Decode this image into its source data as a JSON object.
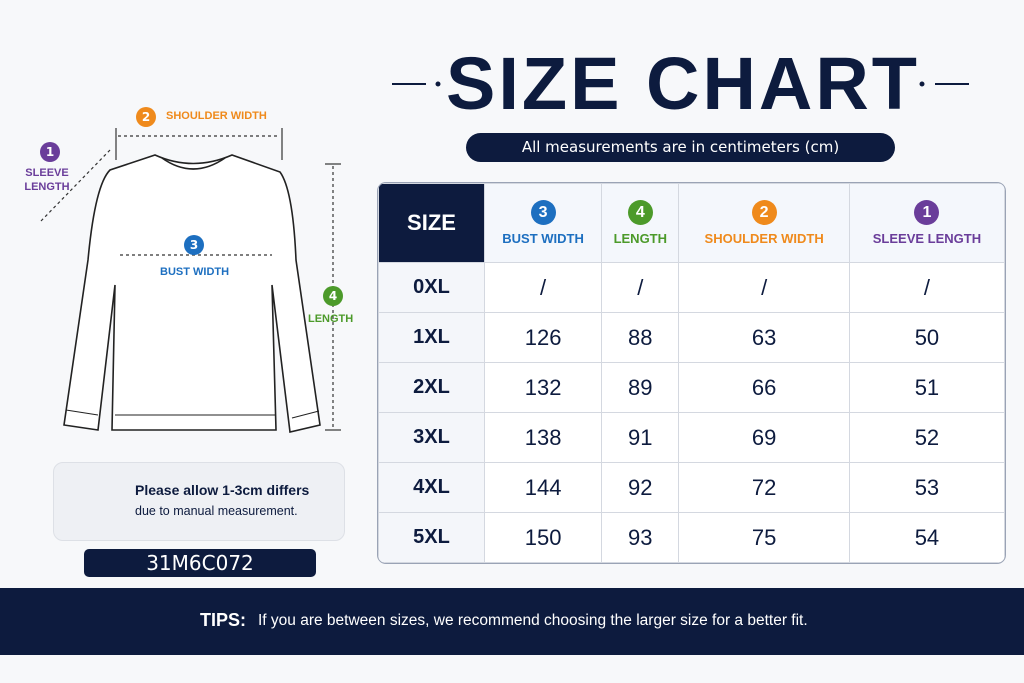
{
  "title": "SIZE CHART",
  "subtitle": "All measurements are in centimeters (cm)",
  "diagram": {
    "labels": [
      {
        "num": 1,
        "text": "SLEEVE LENGTH"
      },
      {
        "num": 2,
        "text": "SHOULDER WIDTH"
      },
      {
        "num": 3,
        "text": "BUST WIDTH"
      },
      {
        "num": 4,
        "text": "LENGTH"
      }
    ]
  },
  "note": {
    "title": "Please allow 1-3cm differs",
    "text": "due to manual measurement."
  },
  "code": "31M6C072",
  "table": {
    "header": [
      "SIZE",
      {
        "num": 3,
        "label": "BUST WIDTH"
      },
      {
        "num": 4,
        "label": "LENGTH"
      },
      {
        "num": 2,
        "label": "SHOULDER WIDTH"
      },
      {
        "num": 1,
        "label": "SLEEVE LENGTH"
      }
    ],
    "rows": [
      [
        "0XL",
        "/",
        "/",
        "/",
        "/"
      ],
      [
        "1XL",
        126,
        88,
        63,
        50
      ],
      [
        "2XL",
        132,
        89,
        66,
        51
      ],
      [
        "3XL",
        138,
        91,
        69,
        52
      ],
      [
        "4XL",
        144,
        92,
        72,
        53
      ],
      [
        "5XL",
        150,
        93,
        75,
        54
      ]
    ]
  },
  "tips": {
    "label": "TIPS:",
    "text": "If you are between sizes, we recommend choosing the larger size for a better fit."
  }
}
